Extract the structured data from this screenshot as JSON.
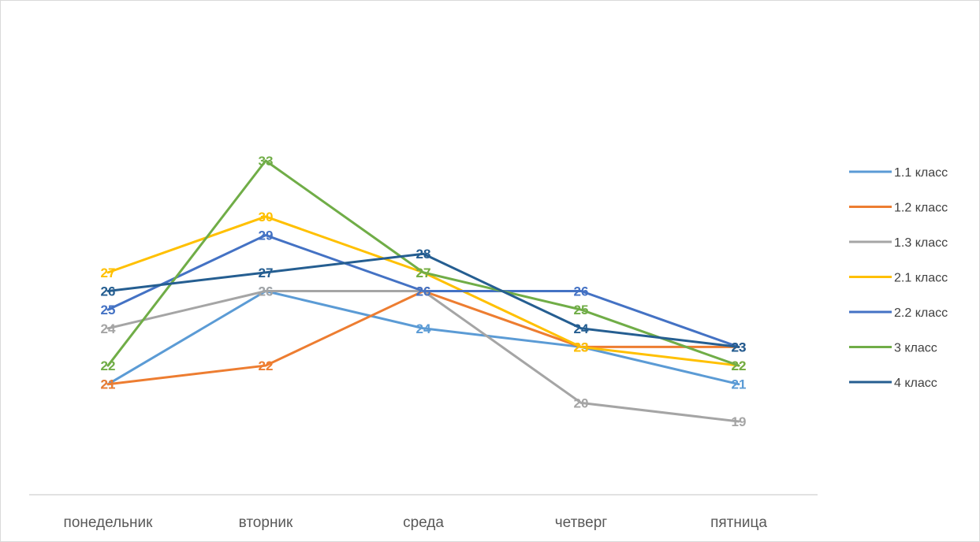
{
  "chart_data": {
    "type": "line",
    "categories": [
      "понедельник",
      "вторник",
      "среда",
      "четверг",
      "пятница"
    ],
    "series": [
      {
        "name": "1.1 класс",
        "color": "#5b9bd5",
        "values": [
          21,
          26,
          24,
          23,
          21
        ]
      },
      {
        "name": "1.2 класс",
        "color": "#ed7d31",
        "values": [
          21,
          22,
          26,
          23,
          23
        ]
      },
      {
        "name": "1.3 класс",
        "color": "#a5a5a5",
        "values": [
          24,
          26,
          26,
          20,
          19
        ]
      },
      {
        "name": "2.1 класс",
        "color": "#ffc000",
        "values": [
          27,
          30,
          27,
          23,
          22
        ]
      },
      {
        "name": "2.2 класс",
        "color": "#4472c4",
        "values": [
          25,
          29,
          26,
          26,
          23
        ]
      },
      {
        "name": "3 класс",
        "color": "#70ad47",
        "values": [
          22,
          33,
          27,
          25,
          22
        ]
      },
      {
        "name": "4 класс",
        "color": "#255e91",
        "values": [
          26,
          27,
          28,
          24,
          23
        ]
      }
    ],
    "data_labels": true,
    "legend_position": "right",
    "gridlines": false,
    "title": "",
    "xlabel": "",
    "ylabel": ""
  }
}
